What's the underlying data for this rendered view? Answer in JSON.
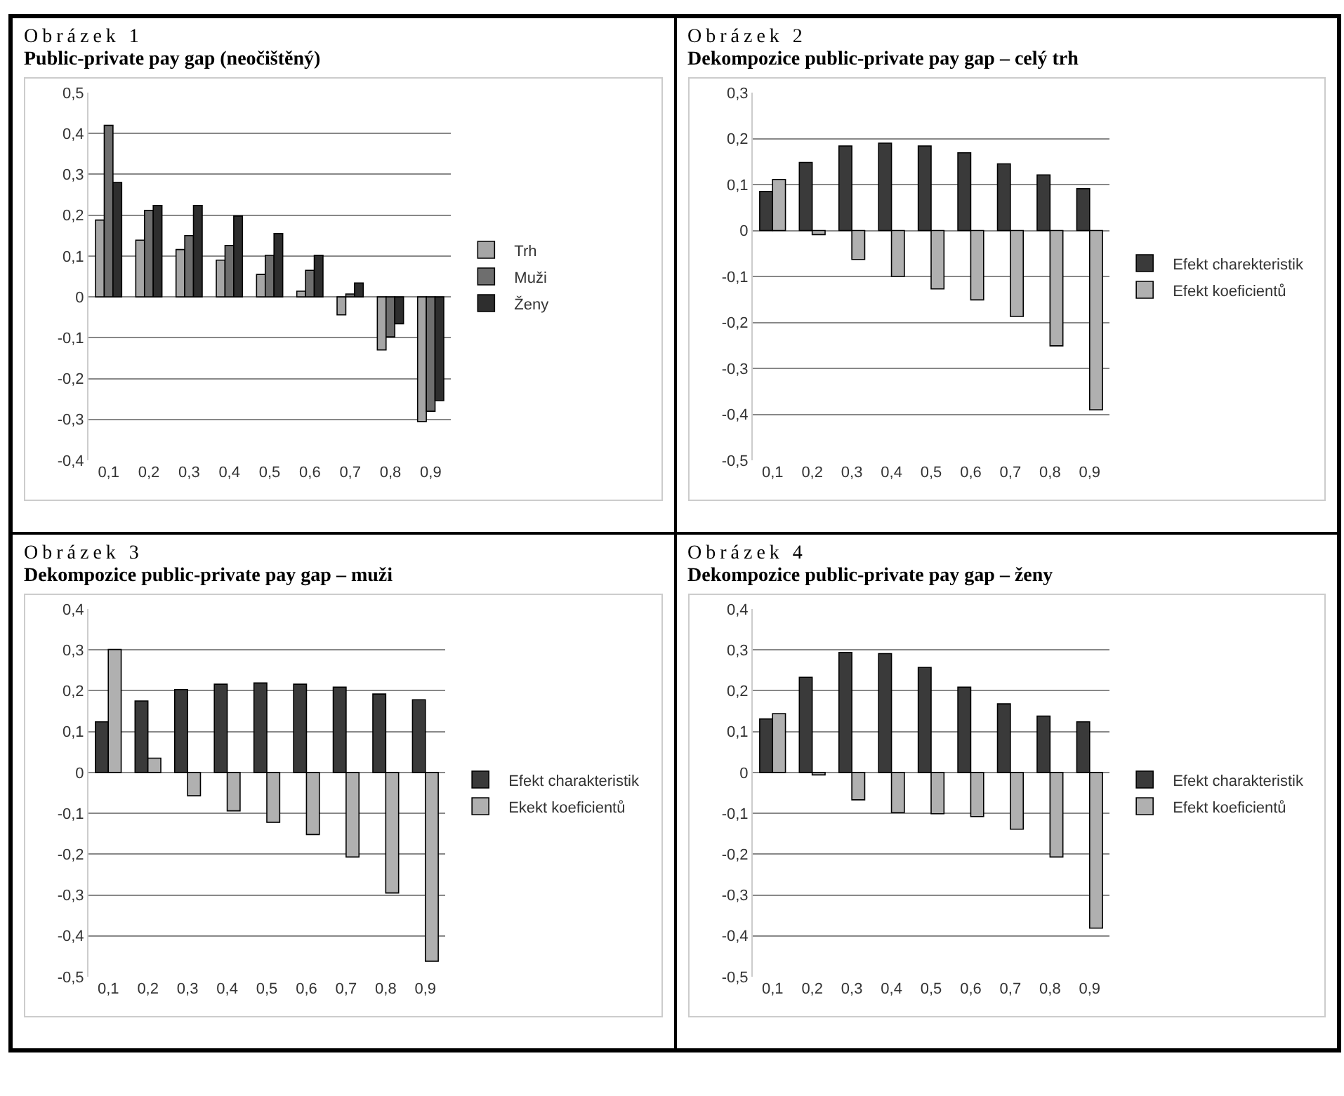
{
  "chart_data": [
    {
      "type": "bar",
      "subtitle": "Obrázek 1",
      "title": "Public-private pay gap (neočištěný)",
      "categories": [
        "0,1",
        "0,2",
        "0,3",
        "0,4",
        "0,5",
        "0,6",
        "0,7",
        "0,8",
        "0,9"
      ],
      "series": [
        {
          "name": "Trh",
          "color": "#a6a6a6",
          "values": [
            0.188,
            0.139,
            0.116,
            0.09,
            0.055,
            0.014,
            -0.044,
            -0.13,
            -0.305
          ]
        },
        {
          "name": "Muži",
          "color": "#6e6e6e",
          "values": [
            0.42,
            0.212,
            0.15,
            0.126,
            0.102,
            0.065,
            0.007,
            -0.098,
            -0.28
          ]
        },
        {
          "name": "Ženy",
          "color": "#2e2e2e",
          "values": [
            0.28,
            0.224,
            0.224,
            0.198,
            0.155,
            0.102,
            0.034,
            -0.066,
            -0.254
          ]
        }
      ],
      "ylim": [
        -0.4,
        0.5
      ],
      "yticks": [
        {
          "value": -0.4,
          "label": "-0,4"
        },
        {
          "value": -0.3,
          "label": "-0,3"
        },
        {
          "value": -0.2,
          "label": "-0,2"
        },
        {
          "value": -0.1,
          "label": "-0,1"
        },
        {
          "value": 0,
          "label": "0"
        },
        {
          "value": 0.1,
          "label": "0,1"
        },
        {
          "value": 0.2,
          "label": "0,2"
        },
        {
          "value": 0.3,
          "label": "0,3"
        },
        {
          "value": 0.4,
          "label": "0,4"
        },
        {
          "value": 0.5,
          "label": "0,5"
        }
      ],
      "grid": "y",
      "legend": "right"
    },
    {
      "type": "bar",
      "subtitle": "Obrázek 2",
      "title": "Dekompozice public-private pay gap – celý trh",
      "categories": [
        "0,1",
        "0,2",
        "0,3",
        "0,4",
        "0,5",
        "0,6",
        "0,7",
        "0,8",
        "0,9"
      ],
      "series": [
        {
          "name": "Efekt charekteristik",
          "color": "#3a3a3a",
          "values": [
            0.085,
            0.148,
            0.184,
            0.19,
            0.184,
            0.169,
            0.145,
            0.121,
            0.091
          ]
        },
        {
          "name": "Efekt koeficientů",
          "color": "#b0b0b0",
          "values": [
            0.111,
            -0.009,
            -0.063,
            -0.1,
            -0.127,
            -0.151,
            -0.187,
            -0.251,
            -0.39
          ]
        }
      ],
      "ylim": [
        -0.5,
        0.3
      ],
      "yticks": [
        {
          "value": -0.5,
          "label": "-0,5"
        },
        {
          "value": -0.4,
          "label": "-0,4"
        },
        {
          "value": -0.3,
          "label": "-0,3"
        },
        {
          "value": -0.2,
          "label": "-0,2"
        },
        {
          "value": -0.1,
          "label": "-0,1"
        },
        {
          "value": 0,
          "label": "0"
        },
        {
          "value": 0.1,
          "label": "0,1"
        },
        {
          "value": 0.2,
          "label": "0,2"
        },
        {
          "value": 0.3,
          "label": "0,3"
        }
      ],
      "grid": "y",
      "legend": "right"
    },
    {
      "type": "bar",
      "subtitle": "Obrázek 3",
      "title": "Dekompozice public-private pay gap – muži",
      "categories": [
        "0,1",
        "0,2",
        "0,3",
        "0,4",
        "0,5",
        "0,6",
        "0,7",
        "0,8",
        "0,9"
      ],
      "series": [
        {
          "name": "Efekt charakteristik",
          "color": "#3a3a3a",
          "values": [
            0.124,
            0.175,
            0.203,
            0.216,
            0.219,
            0.216,
            0.209,
            0.192,
            0.178
          ]
        },
        {
          "name": "Ekekt koeficientů",
          "color": "#b0b0b0",
          "values": [
            0.301,
            0.035,
            -0.057,
            -0.094,
            -0.122,
            -0.152,
            -0.207,
            -0.295,
            -0.462
          ]
        }
      ],
      "ylim": [
        -0.5,
        0.4
      ],
      "yticks": [
        {
          "value": -0.5,
          "label": "-0,5"
        },
        {
          "value": -0.4,
          "label": "-0,4"
        },
        {
          "value": -0.3,
          "label": "-0,3"
        },
        {
          "value": -0.2,
          "label": "-0,2"
        },
        {
          "value": -0.1,
          "label": "-0,1"
        },
        0,
        {
          "value": 0.1,
          "label": "0,1"
        },
        {
          "value": 0.2,
          "label": "0,2"
        },
        {
          "value": 0.3,
          "label": "0,3"
        },
        {
          "value": 0.4,
          "label": "0,4"
        }
      ],
      "grid": "y",
      "legend": "right"
    },
    {
      "type": "bar",
      "subtitle": "Obrázek 4",
      "title": "Dekompozice public-private pay gap – ženy",
      "categories": [
        "0,1",
        "0,2",
        "0,3",
        "0,4",
        "0,5",
        "0,6",
        "0,7",
        "0,8",
        "0,9"
      ],
      "series": [
        {
          "name": "Efekt charakteristik",
          "color": "#3a3a3a",
          "values": [
            0.131,
            0.233,
            0.294,
            0.291,
            0.257,
            0.209,
            0.168,
            0.138,
            0.124
          ]
        },
        {
          "name": "Efekt koeficientů",
          "color": "#b0b0b0",
          "values": [
            0.144,
            -0.006,
            -0.067,
            -0.098,
            -0.101,
            -0.108,
            -0.139,
            -0.207,
            -0.381
          ]
        }
      ],
      "ylim": [
        -0.5,
        0.4
      ],
      "yticks": [
        {
          "value": -0.5,
          "label": "-0,5"
        },
        {
          "value": -0.4,
          "label": "-0,4"
        },
        {
          "value": -0.3,
          "label": "-0,3"
        },
        {
          "value": -0.2,
          "label": "-0,2"
        },
        {
          "value": -0.1,
          "label": "-0,1"
        },
        0,
        {
          "value": 0.1,
          "label": "0,1"
        },
        {
          "value": 0.2,
          "label": "0,2"
        },
        {
          "value": 0.3,
          "label": "0,3"
        },
        {
          "value": 0.4,
          "label": "0,4"
        }
      ],
      "grid": "y",
      "legend": "right"
    }
  ]
}
